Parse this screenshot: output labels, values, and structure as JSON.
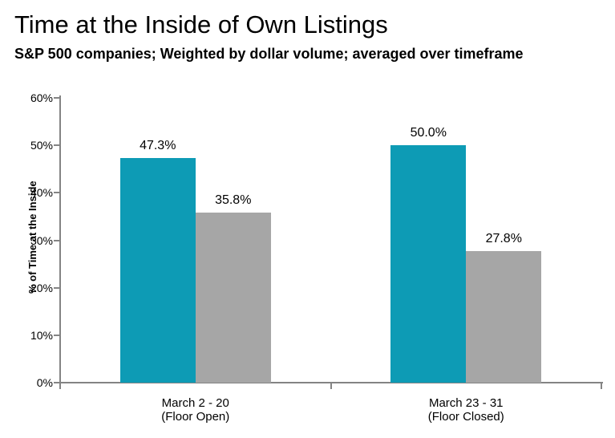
{
  "page": {
    "background": "#FFFFFF"
  },
  "chart_data": {
    "type": "bar",
    "title": "Time at the Inside of Own Listings",
    "subtitle": "S&P 500 companies; Weighted by dollar volume; averaged over timeframe",
    "ylabel": "% of Time at the Inside",
    "xlabel": "",
    "ylim": [
      0,
      60
    ],
    "ytick_step": 10,
    "ytick_labels": [
      "0%",
      "10%",
      "20%",
      "30%",
      "40%",
      "50%",
      "60%"
    ],
    "grid": false,
    "legend": "none",
    "axis_color": "#848484",
    "categories": [
      {
        "line1": "March 2 - 20",
        "line2": "(Floor Open)"
      },
      {
        "line1": "March 23 - 31",
        "line2": "(Floor Closed)"
      }
    ],
    "series": [
      {
        "name": "floor-open-teal-series",
        "color": "#0D9BB5",
        "values": [
          47.3,
          50.0
        ],
        "data_labels": [
          "47.3%",
          "50.0%"
        ]
      },
      {
        "name": "gray-series",
        "color": "#A6A6A6",
        "values": [
          35.8,
          27.8
        ],
        "data_labels": [
          "35.8%",
          "27.8%"
        ]
      }
    ]
  }
}
